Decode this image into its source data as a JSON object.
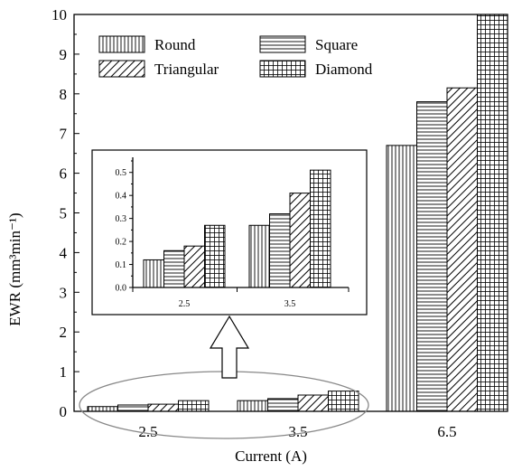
{
  "chart_data": {
    "type": "bar",
    "main": {
      "categories": [
        "2.5",
        "3.5",
        "6.5"
      ],
      "series": [
        {
          "name": "Round",
          "values": [
            0.12,
            0.27,
            6.7
          ]
        },
        {
          "name": "Square",
          "values": [
            0.16,
            0.32,
            7.8
          ]
        },
        {
          "name": "Triangular",
          "values": [
            0.18,
            0.41,
            8.15
          ]
        },
        {
          "name": "Diamond",
          "values": [
            0.27,
            0.51,
            10.0
          ]
        }
      ],
      "xlabel": "Current (A)",
      "ylabel": "EWR (mm³min⁻¹)",
      "ylim": [
        0,
        10
      ],
      "yticks": [
        "0",
        "1",
        "2",
        "3",
        "4",
        "5",
        "6",
        "7",
        "8",
        "9",
        "10"
      ],
      "legend": "top-left",
      "grid": false
    },
    "inset": {
      "categories": [
        "2.5",
        "3.5"
      ],
      "series": [
        {
          "name": "Round",
          "values": [
            0.12,
            0.27
          ]
        },
        {
          "name": "Square",
          "values": [
            0.16,
            0.32
          ]
        },
        {
          "name": "Triangular",
          "values": [
            0.18,
            0.41
          ]
        },
        {
          "name": "Diamond",
          "values": [
            0.27,
            0.51
          ]
        }
      ],
      "ylim": [
        0,
        0.55
      ],
      "yticks": [
        "0.0",
        "0.1",
        "0.2",
        "0.3",
        "0.4",
        "0.5"
      ]
    },
    "patterns": [
      "vertical-lines",
      "horizontal-lines",
      "diagonal-lines",
      "grid"
    ]
  }
}
